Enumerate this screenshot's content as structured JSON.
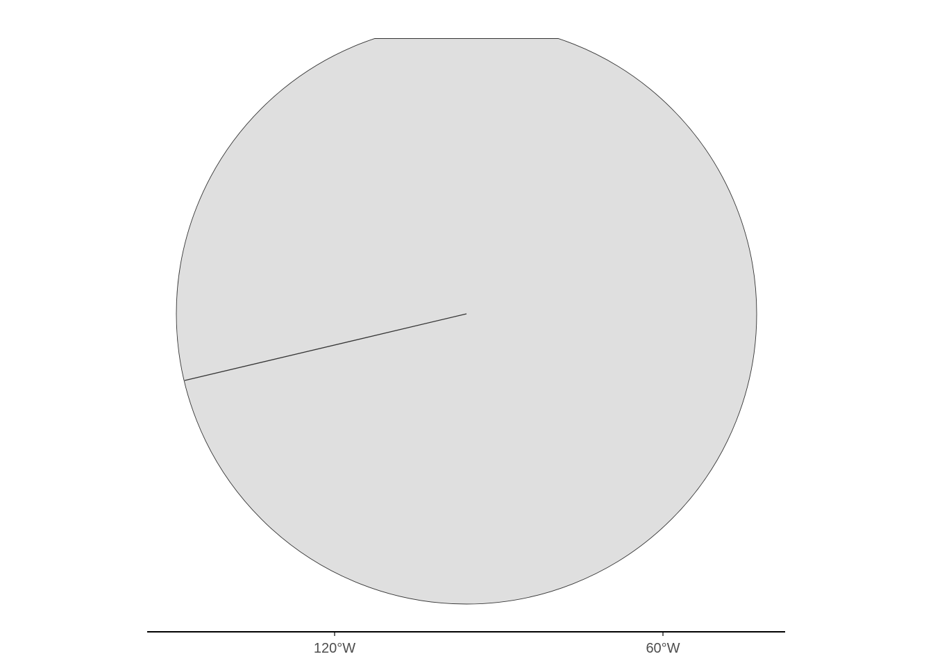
{
  "map": {
    "projection": "polar",
    "fill_color": "#dfdfdf",
    "outline_color": "#333333",
    "axis_color": "#000000",
    "label_color": "#4d4d4d"
  },
  "x_axis": {
    "ticks": [
      {
        "value": -120,
        "label": "120°W"
      },
      {
        "value": -60,
        "label": "60°W"
      }
    ]
  }
}
